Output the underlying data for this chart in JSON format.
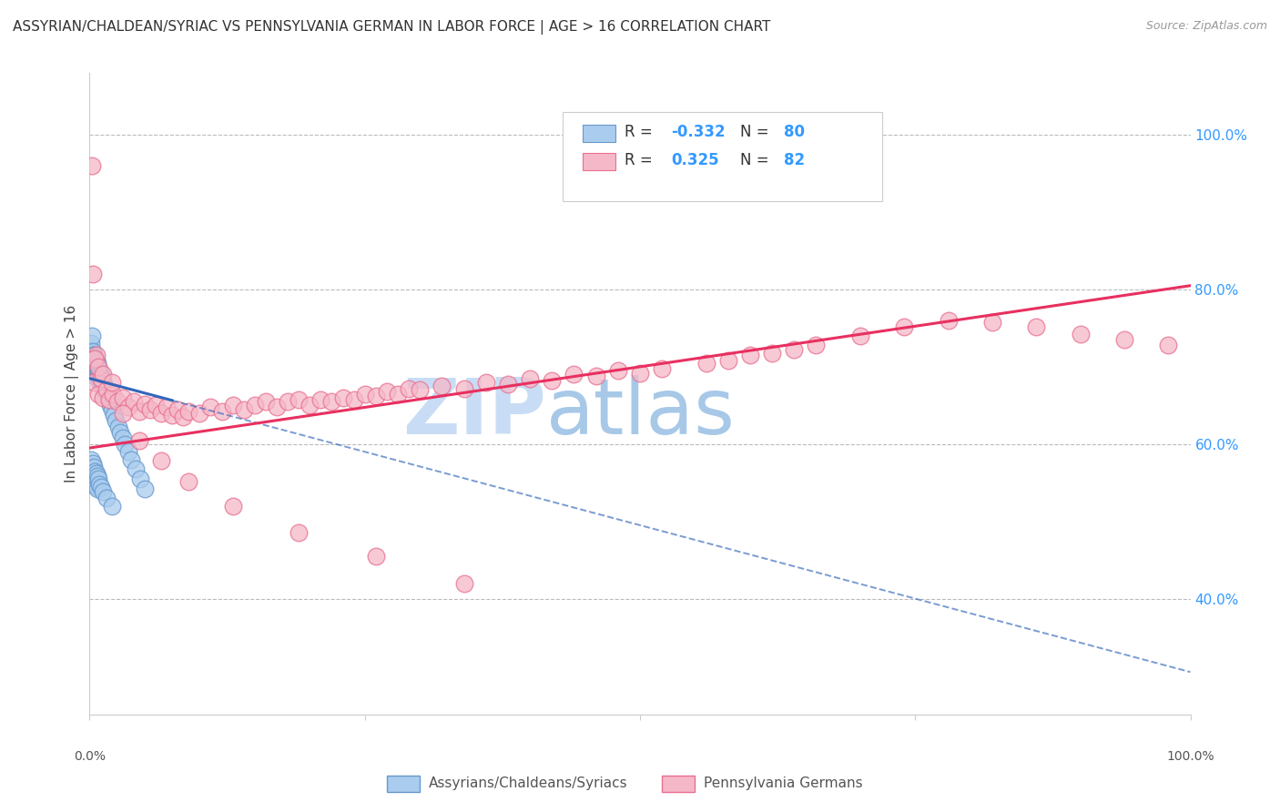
{
  "title": "ASSYRIAN/CHALDEAN/SYRIAC VS PENNSYLVANIA GERMAN IN LABOR FORCE | AGE > 16 CORRELATION CHART",
  "source": "Source: ZipAtlas.com",
  "ylabel": "In Labor Force | Age > 16",
  "right_ytick_labels": [
    "100.0%",
    "80.0%",
    "60.0%",
    "40.0%"
  ],
  "right_ytick_values": [
    1.0,
    0.8,
    0.6,
    0.4
  ],
  "legend_blue_r": "-0.332",
  "legend_blue_n": "80",
  "legend_pink_r": "0.325",
  "legend_pink_n": "82",
  "blue_color": "#aaccee",
  "blue_edge_color": "#6699cc",
  "pink_color": "#f5b8c8",
  "pink_edge_color": "#e87090",
  "blue_line_color": "#3366bb",
  "pink_line_color": "#e83060",
  "watermark_zip_color": "#c8ddf5",
  "watermark_atlas_color": "#a8c8e8",
  "background_color": "#ffffff",
  "grid_color": "#bbbbbb",
  "title_fontsize": 11,
  "blue_scatter_x": [
    0.001,
    0.001,
    0.002,
    0.002,
    0.002,
    0.003,
    0.003,
    0.003,
    0.003,
    0.004,
    0.004,
    0.004,
    0.004,
    0.004,
    0.005,
    0.005,
    0.005,
    0.005,
    0.005,
    0.006,
    0.006,
    0.006,
    0.006,
    0.007,
    0.007,
    0.007,
    0.007,
    0.008,
    0.008,
    0.008,
    0.009,
    0.009,
    0.009,
    0.01,
    0.01,
    0.01,
    0.011,
    0.011,
    0.012,
    0.012,
    0.013,
    0.013,
    0.014,
    0.015,
    0.016,
    0.017,
    0.018,
    0.019,
    0.02,
    0.022,
    0.024,
    0.026,
    0.028,
    0.03,
    0.032,
    0.035,
    0.038,
    0.042,
    0.046,
    0.05,
    0.001,
    0.001,
    0.002,
    0.002,
    0.003,
    0.003,
    0.004,
    0.004,
    0.005,
    0.005,
    0.006,
    0.006,
    0.007,
    0.007,
    0.008,
    0.009,
    0.01,
    0.012,
    0.015,
    0.02
  ],
  "blue_scatter_y": [
    0.73,
    0.72,
    0.74,
    0.71,
    0.7,
    0.72,
    0.715,
    0.705,
    0.695,
    0.715,
    0.705,
    0.698,
    0.692,
    0.71,
    0.712,
    0.705,
    0.698,
    0.692,
    0.688,
    0.708,
    0.7,
    0.695,
    0.69,
    0.705,
    0.698,
    0.693,
    0.688,
    0.698,
    0.692,
    0.688,
    0.695,
    0.69,
    0.682,
    0.69,
    0.685,
    0.678,
    0.685,
    0.678,
    0.682,
    0.675,
    0.678,
    0.67,
    0.672,
    0.668,
    0.665,
    0.66,
    0.655,
    0.65,
    0.645,
    0.638,
    0.63,
    0.622,
    0.615,
    0.608,
    0.6,
    0.59,
    0.58,
    0.568,
    0.555,
    0.542,
    0.58,
    0.56,
    0.568,
    0.548,
    0.575,
    0.555,
    0.57,
    0.552,
    0.565,
    0.548,
    0.562,
    0.545,
    0.558,
    0.542,
    0.555,
    0.548,
    0.545,
    0.538,
    0.53,
    0.52
  ],
  "pink_scatter_x": [
    0.002,
    0.004,
    0.006,
    0.008,
    0.01,
    0.012,
    0.015,
    0.018,
    0.021,
    0.025,
    0.03,
    0.035,
    0.04,
    0.045,
    0.05,
    0.055,
    0.06,
    0.065,
    0.07,
    0.075,
    0.08,
    0.085,
    0.09,
    0.1,
    0.11,
    0.12,
    0.13,
    0.14,
    0.15,
    0.16,
    0.17,
    0.18,
    0.19,
    0.2,
    0.21,
    0.22,
    0.23,
    0.24,
    0.25,
    0.26,
    0.27,
    0.28,
    0.29,
    0.3,
    0.32,
    0.34,
    0.36,
    0.38,
    0.4,
    0.42,
    0.44,
    0.46,
    0.48,
    0.5,
    0.52,
    0.56,
    0.58,
    0.6,
    0.62,
    0.64,
    0.66,
    0.7,
    0.74,
    0.78,
    0.82,
    0.86,
    0.9,
    0.94,
    0.98,
    0.003,
    0.005,
    0.008,
    0.012,
    0.02,
    0.03,
    0.045,
    0.065,
    0.09,
    0.13,
    0.19,
    0.26,
    0.34
  ],
  "pink_scatter_y": [
    0.96,
    0.68,
    0.715,
    0.665,
    0.685,
    0.66,
    0.67,
    0.658,
    0.665,
    0.655,
    0.66,
    0.648,
    0.655,
    0.642,
    0.652,
    0.645,
    0.65,
    0.64,
    0.648,
    0.638,
    0.645,
    0.635,
    0.642,
    0.64,
    0.648,
    0.642,
    0.65,
    0.645,
    0.65,
    0.655,
    0.648,
    0.655,
    0.658,
    0.65,
    0.658,
    0.655,
    0.66,
    0.658,
    0.665,
    0.662,
    0.668,
    0.665,
    0.672,
    0.67,
    0.675,
    0.672,
    0.68,
    0.678,
    0.685,
    0.682,
    0.69,
    0.688,
    0.695,
    0.692,
    0.698,
    0.705,
    0.708,
    0.715,
    0.718,
    0.722,
    0.728,
    0.74,
    0.752,
    0.76,
    0.758,
    0.752,
    0.742,
    0.735,
    0.728,
    0.82,
    0.71,
    0.7,
    0.69,
    0.68,
    0.64,
    0.605,
    0.578,
    0.552,
    0.52,
    0.485,
    0.455,
    0.42
  ],
  "xlim": [
    0.0,
    1.0
  ],
  "ylim": [
    0.25,
    1.08
  ],
  "blue_trend_x0": 0.0,
  "blue_trend_x_solid_end": 0.075,
  "blue_trend_x_dashed_end": 1.0,
  "blue_trend_y_at_0": 0.685,
  "blue_trend_slope": -0.38,
  "pink_trend_y_at_0": 0.595,
  "pink_trend_slope": 0.21
}
